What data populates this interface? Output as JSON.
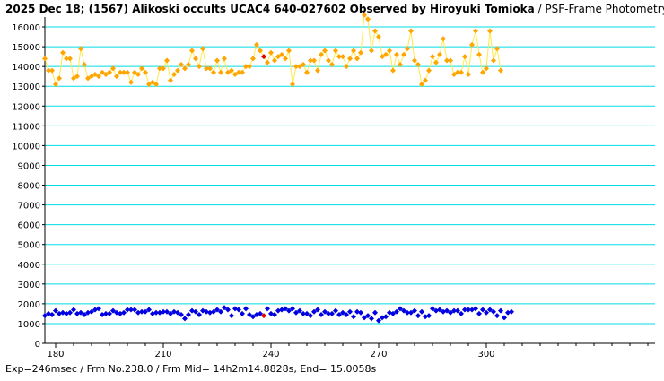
{
  "title": {
    "main": "2025 Dec 18; (1567) Alikoski occults UCAC4 640-027602 Observed by Hiroyuki Tomioka",
    "method": " / PSF-Frame Photometry /"
  },
  "footer": "Exp=246msec / Frm No.238.0 / Frm Mid= 14h2m14.8828s,  End= 15.0058s",
  "chart_data": {
    "type": "scatter",
    "xlim": [
      177,
      347
    ],
    "ylim": [
      0,
      16500
    ],
    "x_ticks": [
      180,
      210,
      240,
      270,
      300
    ],
    "y_ticks": [
      0,
      1000,
      2000,
      3000,
      4000,
      5000,
      6000,
      7000,
      8000,
      9000,
      10000,
      11000,
      12000,
      13000,
      14000,
      15000,
      16000
    ],
    "grid": "horizontal",
    "colors": {
      "upper_marker": "#FFA500",
      "upper_line": "#FFE94A",
      "lower_marker": "#0000E0",
      "highlight": "#E00000",
      "grid": "#00DDE6",
      "axis": "#000000"
    },
    "highlight_frame": 238,
    "series": [
      {
        "x_start": 177,
        "values": [
          14400,
          13800,
          13800,
          13100,
          13400,
          14700,
          14400,
          14400,
          13400,
          13500,
          14900,
          14100,
          13400,
          13500,
          13600,
          13500,
          13700,
          13600,
          13700,
          13900,
          13500,
          13700,
          13700,
          13700,
          13200,
          13700,
          13600,
          13900,
          13700,
          13100,
          13200,
          13100,
          13900,
          13900,
          14300,
          13300,
          13600,
          13800,
          14100,
          13900,
          14100,
          14800,
          14400,
          14000,
          14900,
          13900,
          13900,
          13700,
          14300,
          13700,
          14400,
          13700,
          13800,
          13600,
          13700,
          13700,
          14000,
          14000,
          14400,
          15100,
          14800,
          14500,
          14200,
          14700,
          14300,
          14500,
          14600,
          14400,
          14800,
          13100,
          14000,
          14000,
          14100,
          13700,
          14300,
          14300,
          13800,
          14600,
          14800,
          14300,
          14100,
          14800,
          14500,
          14500,
          14000,
          14400,
          14800,
          14400,
          14700,
          16600,
          16400,
          14800,
          15800,
          15500,
          14500,
          14600,
          14800,
          13800,
          14600,
          14100,
          14600,
          14900,
          15800,
          14300,
          14100,
          13100,
          13300,
          13800,
          14500,
          14200,
          14600,
          15400,
          14300,
          14300,
          13600,
          13700,
          13700,
          14500,
          13600,
          15100,
          15800,
          14600,
          13700,
          13900,
          15800,
          14300,
          14900,
          13800
        ]
      },
      {
        "x_start": 177,
        "values": [
          1400,
          1500,
          1450,
          1650,
          1500,
          1550,
          1500,
          1550,
          1700,
          1500,
          1550,
          1450,
          1550,
          1600,
          1700,
          1750,
          1450,
          1500,
          1500,
          1650,
          1550,
          1500,
          1550,
          1700,
          1700,
          1700,
          1550,
          1600,
          1600,
          1700,
          1500,
          1550,
          1550,
          1600,
          1600,
          1500,
          1600,
          1550,
          1450,
          1250,
          1450,
          1650,
          1600,
          1450,
          1650,
          1600,
          1550,
          1600,
          1700,
          1600,
          1800,
          1700,
          1400,
          1750,
          1700,
          1500,
          1750,
          1450,
          1350,
          1450,
          1500,
          1400,
          1750,
          1500,
          1450,
          1650,
          1700,
          1750,
          1650,
          1750,
          1550,
          1650,
          1500,
          1500,
          1400,
          1600,
          1700,
          1450,
          1600,
          1500,
          1500,
          1650,
          1450,
          1550,
          1450,
          1600,
          1350,
          1600,
          1550,
          1300,
          1400,
          1250,
          1550,
          1150,
          1300,
          1350,
          1550,
          1500,
          1600,
          1750,
          1650,
          1550,
          1550,
          1650,
          1400,
          1600,
          1350,
          1400,
          1750,
          1650,
          1700,
          1600,
          1650,
          1550,
          1650,
          1650,
          1500,
          1700,
          1700,
          1700,
          1750,
          1500,
          1700,
          1550,
          1700,
          1600,
          1400,
          1650,
          1300,
          1550,
          1600
        ]
      }
    ]
  }
}
